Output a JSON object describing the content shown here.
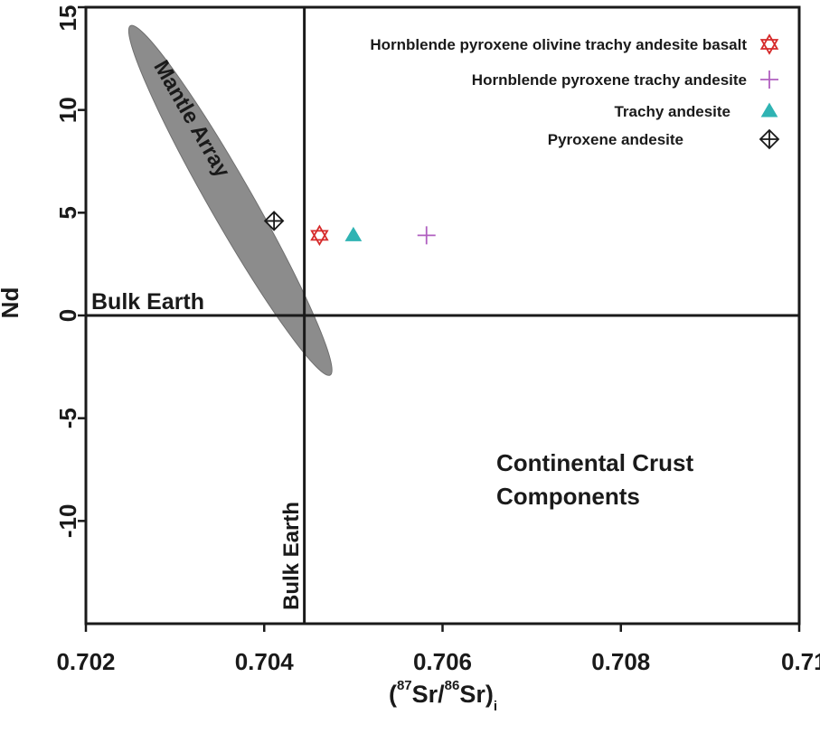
{
  "chart_data": {
    "type": "scatter",
    "title": "",
    "xlabel": {
      "open": "(",
      "sup1": "87",
      "mid1": "Sr/",
      "sup2": "86",
      "mid2": "Sr)",
      "sub": "i"
    },
    "ylabel": "Nd",
    "xlim": [
      0.702,
      0.71
    ],
    "ylim": [
      -15,
      15
    ],
    "x_ticks": [
      {
        "value": 0.702,
        "label": "0.702"
      },
      {
        "value": 0.704,
        "label": "0.704"
      },
      {
        "value": 0.706,
        "label": "0.706"
      },
      {
        "value": 0.708,
        "label": "0.708"
      },
      {
        "value": 0.71,
        "label": "0.71"
      }
    ],
    "y_ticks": [
      {
        "value": 15,
        "label": "15"
      },
      {
        "value": 10,
        "label": "10"
      },
      {
        "value": 5,
        "label": "5"
      },
      {
        "value": 0,
        "label": "0"
      },
      {
        "value": -5,
        "label": "-5"
      },
      {
        "value": -10,
        "label": "-10"
      }
    ],
    "grid": false,
    "legend_position": "top-right",
    "reference_lines": {
      "bulk_earth_x": 0.70445,
      "bulk_earth_y": 0
    },
    "mantle_array": {
      "label": "Mantle Array",
      "color": "#8c8c8c",
      "start": [
        0.7025,
        14.1
      ],
      "end": [
        0.70474,
        -2.9
      ]
    },
    "annotations": {
      "bulk_earth_horizontal": "Bulk Earth",
      "bulk_earth_vertical": "Bulk Earth",
      "continental_line1": "Continental Crust",
      "continental_line2": "Components"
    },
    "series": [
      {
        "name": "Hornblende pyroxene olivine trachy andesite basalt",
        "marker": "star-of-david",
        "color": "#d62b2b",
        "points": [
          [
            0.70462,
            3.9
          ]
        ]
      },
      {
        "name": "Hornblende pyroxene trachy andesite",
        "marker": "plus",
        "color": "#b05fc0",
        "points": [
          [
            0.70582,
            3.9
          ]
        ]
      },
      {
        "name": "Trachy andesite",
        "marker": "triangle",
        "color": "#2fb3b3",
        "points": [
          [
            0.705,
            3.9
          ]
        ]
      },
      {
        "name": "Pyroxene andesite",
        "marker": "diamond-cross",
        "color": "#1a1a1a",
        "points": [
          [
            0.70411,
            4.6
          ]
        ]
      }
    ]
  }
}
